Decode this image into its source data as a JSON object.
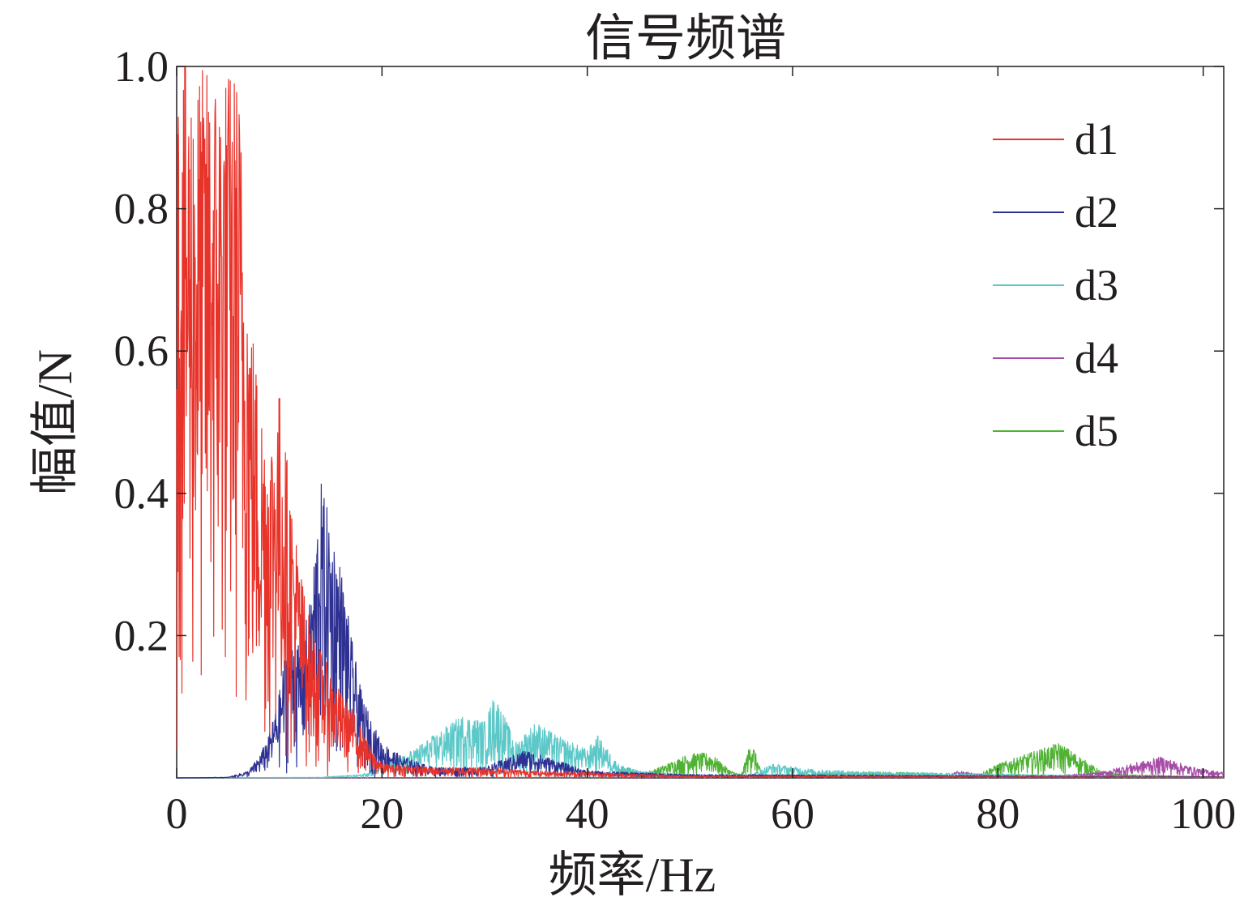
{
  "chart_data": {
    "type": "line",
    "title": "信号频谱",
    "xlabel": "频率/Hz",
    "ylabel": "幅值/N",
    "xlim": [
      0,
      102
    ],
    "ylim": [
      0,
      1.0
    ],
    "x_ticks": [
      0,
      20,
      40,
      60,
      80,
      100
    ],
    "x_tick_labels": [
      "0",
      "20",
      "40",
      "60",
      "80",
      "100"
    ],
    "y_ticks": [
      0.2,
      0.4,
      0.6,
      0.8,
      1.0
    ],
    "y_tick_labels": [
      "0.2",
      "0.4",
      "0.6",
      "0.8",
      "1.0"
    ],
    "grid": false,
    "legend_position": "top-right",
    "series": [
      {
        "name": "d1",
        "color": "#e8332a",
        "envelope_hz": [
          0,
          1,
          2,
          3,
          4,
          5,
          6,
          7,
          8,
          9,
          10,
          11,
          12,
          13,
          14,
          15,
          16,
          17,
          18,
          19,
          20,
          25,
          30,
          35,
          40,
          50,
          102
        ],
        "envelope_amp": [
          1.0,
          1.0,
          1.0,
          1.0,
          1.0,
          1.0,
          1.0,
          0.7,
          0.55,
          0.48,
          0.55,
          0.42,
          0.3,
          0.22,
          0.18,
          0.15,
          0.12,
          0.1,
          0.07,
          0.04,
          0.02,
          0.015,
          0.015,
          0.01,
          0.008,
          0.003,
          0.001
        ]
      },
      {
        "name": "d2",
        "color": "#2e3192",
        "envelope_hz": [
          0,
          5,
          7,
          8,
          9,
          10,
          11,
          12,
          13,
          14,
          15,
          16,
          17,
          18,
          19,
          20,
          22,
          25,
          30,
          34,
          40,
          50,
          102
        ],
        "envelope_amp": [
          0,
          0.001,
          0.01,
          0.03,
          0.06,
          0.12,
          0.22,
          0.18,
          0.25,
          0.42,
          0.36,
          0.3,
          0.2,
          0.12,
          0.08,
          0.05,
          0.03,
          0.015,
          0.015,
          0.04,
          0.01,
          0.005,
          0.002
        ]
      },
      {
        "name": "d3",
        "color": "#5cc8c8",
        "envelope_hz": [
          0,
          14,
          18,
          20,
          22,
          25,
          28,
          30,
          31,
          33,
          35,
          37,
          40,
          41,
          43,
          45,
          50,
          56,
          58,
          62,
          66,
          70,
          102
        ],
        "envelope_amp": [
          0,
          0.001,
          0.005,
          0.02,
          0.03,
          0.06,
          0.09,
          0.08,
          0.12,
          0.05,
          0.08,
          0.06,
          0.04,
          0.06,
          0.02,
          0.01,
          0.005,
          0.005,
          0.02,
          0.012,
          0.01,
          0.008,
          0.001
        ]
      },
      {
        "name": "d4",
        "color": "#a64ca6",
        "envelope_hz": [
          0,
          40,
          60,
          75,
          76,
          80,
          86,
          90,
          93,
          96,
          99,
          102
        ],
        "envelope_amp": [
          0,
          0.001,
          0.002,
          0.002,
          0.01,
          0.002,
          0.004,
          0.008,
          0.02,
          0.03,
          0.015,
          0.008
        ]
      },
      {
        "name": "d5",
        "color": "#4fb233",
        "envelope_hz": [
          0,
          42,
          43,
          44,
          45,
          47,
          50,
          52,
          54,
          55,
          56,
          57,
          60,
          66,
          72,
          76,
          78,
          80,
          82,
          84,
          86,
          88,
          90,
          92,
          102
        ],
        "envelope_amp": [
          0,
          0.001,
          0.01,
          0.015,
          0.005,
          0.015,
          0.035,
          0.035,
          0.01,
          0.005,
          0.055,
          0.005,
          0.005,
          0.008,
          0.008,
          0.003,
          0.005,
          0.02,
          0.03,
          0.04,
          0.05,
          0.03,
          0.01,
          0.005,
          0.001
        ]
      }
    ]
  }
}
